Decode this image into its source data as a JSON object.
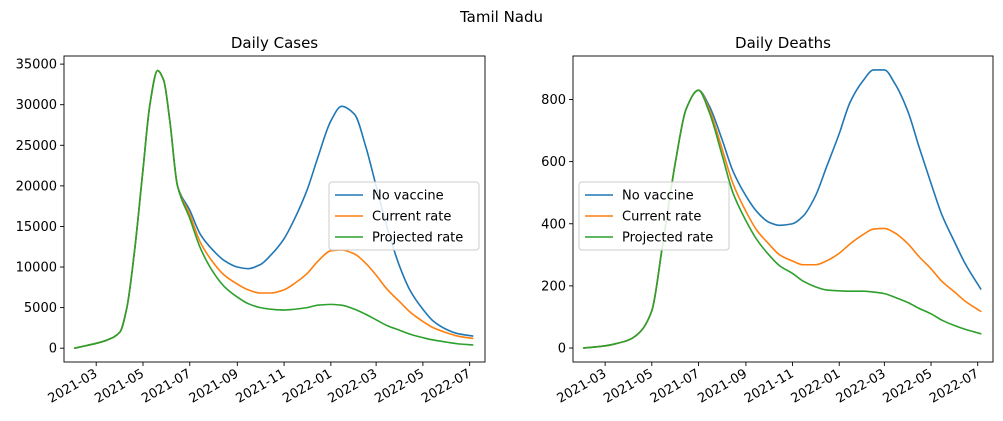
{
  "suptitle": "Tamil Nadu",
  "colors": {
    "No vaccine": "#1f77b4",
    "Current rate": "#ff7f0e",
    "Projected rate": "#2ca02c"
  },
  "chart_data": [
    {
      "type": "line",
      "title": "Daily Cases",
      "xlabel": "",
      "ylabel": "",
      "x_type": "date",
      "xlim": [
        "2021-01-18",
        "2022-07-21"
      ],
      "ylim": [
        -1700,
        36000
      ],
      "xticks": [
        "2021-03-01",
        "2021-05-01",
        "2021-07-01",
        "2021-09-01",
        "2021-11-01",
        "2022-01-01",
        "2022-03-01",
        "2022-05-01",
        "2022-07-01"
      ],
      "xtick_labels": [
        "2021-03",
        "2021-05",
        "2021-07",
        "2021-09",
        "2021-11",
        "2022-01",
        "2022-03",
        "2022-05",
        "2022-07"
      ],
      "yticks": [
        0,
        5000,
        10000,
        15000,
        20000,
        25000,
        30000,
        35000
      ],
      "legend_loc": "center right",
      "grid": false,
      "series": [
        {
          "name": "No vaccine",
          "x": [
            "2021-02-01",
            "2021-02-15",
            "2021-03-01",
            "2021-03-15",
            "2021-04-01",
            "2021-04-10",
            "2021-04-20",
            "2021-05-01",
            "2021-05-10",
            "2021-05-20",
            "2021-05-28",
            "2021-06-05",
            "2021-06-15",
            "2021-07-01",
            "2021-07-15",
            "2021-08-01",
            "2021-08-15",
            "2021-09-01",
            "2021-09-15",
            "2021-10-01",
            "2021-10-15",
            "2021-11-01",
            "2021-11-15",
            "2021-12-01",
            "2021-12-15",
            "2022-01-01",
            "2022-01-15",
            "2022-02-01",
            "2022-02-15",
            "2022-03-01",
            "2022-03-15",
            "2022-04-01",
            "2022-04-15",
            "2022-05-01",
            "2022-05-15",
            "2022-06-01",
            "2022-06-15",
            "2022-07-05"
          ],
          "y": [
            0,
            300,
            600,
            1000,
            2000,
            5000,
            12000,
            22000,
            30000,
            34200,
            33000,
            28000,
            20000,
            17000,
            14000,
            12000,
            10800,
            10000,
            9800,
            10300,
            11500,
            13500,
            16000,
            19500,
            23500,
            28000,
            29800,
            28800,
            25000,
            20000,
            15000,
            10000,
            7000,
            4800,
            3300,
            2300,
            1800,
            1500
          ]
        },
        {
          "name": "Current rate",
          "x": [
            "2021-02-01",
            "2021-02-15",
            "2021-03-01",
            "2021-03-15",
            "2021-04-01",
            "2021-04-10",
            "2021-04-20",
            "2021-05-01",
            "2021-05-10",
            "2021-05-20",
            "2021-05-28",
            "2021-06-05",
            "2021-06-15",
            "2021-07-01",
            "2021-07-15",
            "2021-08-01",
            "2021-08-15",
            "2021-09-01",
            "2021-09-15",
            "2021-10-01",
            "2021-10-15",
            "2021-11-01",
            "2021-11-15",
            "2021-12-01",
            "2021-12-15",
            "2022-01-01",
            "2022-01-15",
            "2022-02-01",
            "2022-02-15",
            "2022-03-01",
            "2022-03-15",
            "2022-04-01",
            "2022-04-15",
            "2022-05-01",
            "2022-05-15",
            "2022-06-01",
            "2022-06-15",
            "2022-07-05"
          ],
          "y": [
            0,
            300,
            600,
            1000,
            2000,
            5000,
            12000,
            22000,
            30000,
            34200,
            33000,
            28000,
            20000,
            16500,
            13000,
            10500,
            9000,
            7900,
            7200,
            6800,
            6800,
            7200,
            8000,
            9200,
            10700,
            12000,
            12100,
            11600,
            10500,
            9000,
            7300,
            5700,
            4400,
            3300,
            2500,
            1900,
            1500,
            1200
          ]
        },
        {
          "name": "Projected rate",
          "x": [
            "2021-02-01",
            "2021-02-15",
            "2021-03-01",
            "2021-03-15",
            "2021-04-01",
            "2021-04-10",
            "2021-04-20",
            "2021-05-01",
            "2021-05-10",
            "2021-05-20",
            "2021-05-28",
            "2021-06-05",
            "2021-06-15",
            "2021-07-01",
            "2021-07-15",
            "2021-08-01",
            "2021-08-15",
            "2021-09-01",
            "2021-09-15",
            "2021-10-01",
            "2021-10-15",
            "2021-11-01",
            "2021-11-15",
            "2021-12-01",
            "2021-12-15",
            "2022-01-01",
            "2022-01-15",
            "2022-02-01",
            "2022-02-15",
            "2022-03-01",
            "2022-03-15",
            "2022-04-01",
            "2022-04-15",
            "2022-05-01",
            "2022-05-15",
            "2022-06-01",
            "2022-06-15",
            "2022-07-05"
          ],
          "y": [
            0,
            300,
            600,
            1000,
            2000,
            5000,
            12000,
            22000,
            30000,
            34200,
            33000,
            28000,
            20000,
            16000,
            12300,
            9300,
            7600,
            6300,
            5500,
            5000,
            4800,
            4700,
            4800,
            5000,
            5300,
            5400,
            5300,
            4800,
            4200,
            3500,
            2800,
            2200,
            1700,
            1300,
            1000,
            750,
            550,
            400
          ]
        }
      ]
    },
    {
      "type": "line",
      "title": "Daily Deaths",
      "xlabel": "",
      "ylabel": "",
      "x_type": "date",
      "xlim": [
        "2021-01-18",
        "2022-07-21"
      ],
      "ylim": [
        -45,
        940
      ],
      "xticks": [
        "2021-03-01",
        "2021-05-01",
        "2021-07-01",
        "2021-09-01",
        "2021-11-01",
        "2022-01-01",
        "2022-03-01",
        "2022-05-01",
        "2022-07-01"
      ],
      "xtick_labels": [
        "2021-03",
        "2021-05",
        "2021-07",
        "2021-09",
        "2021-11",
        "2022-01",
        "2022-03",
        "2022-05",
        "2022-07"
      ],
      "yticks": [
        0,
        200,
        400,
        600,
        800
      ],
      "legend_loc": "center left",
      "grid": false,
      "series": [
        {
          "name": "No vaccine",
          "x": [
            "2021-02-01",
            "2021-02-15",
            "2021-03-01",
            "2021-03-15",
            "2021-04-01",
            "2021-04-15",
            "2021-05-01",
            "2021-05-15",
            "2021-06-01",
            "2021-06-15",
            "2021-07-01",
            "2021-07-15",
            "2021-08-01",
            "2021-08-15",
            "2021-09-01",
            "2021-09-15",
            "2021-10-01",
            "2021-10-15",
            "2021-11-01",
            "2021-11-15",
            "2021-12-01",
            "2021-12-15",
            "2022-01-01",
            "2022-01-15",
            "2022-02-01",
            "2022-02-15",
            "2022-03-01",
            "2022-03-15",
            "2022-04-01",
            "2022-04-15",
            "2022-05-01",
            "2022-05-15",
            "2022-06-01",
            "2022-06-15",
            "2022-07-05"
          ],
          "y": [
            0,
            3,
            7,
            14,
            26,
            50,
            120,
            330,
            600,
            770,
            830,
            780,
            670,
            570,
            490,
            440,
            405,
            395,
            400,
            425,
            490,
            580,
            690,
            790,
            860,
            895,
            895,
            850,
            760,
            650,
            530,
            430,
            340,
            270,
            190
          ]
        },
        {
          "name": "Current rate",
          "x": [
            "2021-02-01",
            "2021-02-15",
            "2021-03-01",
            "2021-03-15",
            "2021-04-01",
            "2021-04-15",
            "2021-05-01",
            "2021-05-15",
            "2021-06-01",
            "2021-06-15",
            "2021-07-01",
            "2021-07-15",
            "2021-08-01",
            "2021-08-15",
            "2021-09-01",
            "2021-09-15",
            "2021-10-01",
            "2021-10-15",
            "2021-11-01",
            "2021-11-15",
            "2021-12-01",
            "2021-12-15",
            "2022-01-01",
            "2022-01-15",
            "2022-02-01",
            "2022-02-15",
            "2022-03-01",
            "2022-03-15",
            "2022-04-01",
            "2022-04-15",
            "2022-05-01",
            "2022-05-15",
            "2022-06-01",
            "2022-06-15",
            "2022-07-05"
          ],
          "y": [
            0,
            3,
            7,
            14,
            26,
            50,
            120,
            330,
            600,
            770,
            830,
            770,
            640,
            530,
            440,
            380,
            335,
            300,
            280,
            268,
            268,
            280,
            305,
            335,
            365,
            383,
            385,
            370,
            335,
            295,
            255,
            215,
            180,
            150,
            118
          ]
        },
        {
          "name": "Projected rate",
          "x": [
            "2021-02-01",
            "2021-02-15",
            "2021-03-01",
            "2021-03-15",
            "2021-04-01",
            "2021-04-15",
            "2021-05-01",
            "2021-05-15",
            "2021-06-01",
            "2021-06-15",
            "2021-07-01",
            "2021-07-15",
            "2021-08-01",
            "2021-08-15",
            "2021-09-01",
            "2021-09-15",
            "2021-10-01",
            "2021-10-15",
            "2021-11-01",
            "2021-11-15",
            "2021-12-01",
            "2021-12-15",
            "2022-01-01",
            "2022-01-15",
            "2022-02-01",
            "2022-02-15",
            "2022-03-01",
            "2022-03-15",
            "2022-04-01",
            "2022-04-15",
            "2022-05-01",
            "2022-05-15",
            "2022-06-01",
            "2022-06-15",
            "2022-07-05"
          ],
          "y": [
            0,
            3,
            7,
            14,
            26,
            50,
            120,
            330,
            600,
            770,
            830,
            760,
            620,
            500,
            410,
            350,
            300,
            265,
            240,
            215,
            197,
            187,
            184,
            183,
            183,
            180,
            175,
            163,
            146,
            128,
            110,
            90,
            72,
            60,
            46
          ]
        }
      ]
    }
  ]
}
